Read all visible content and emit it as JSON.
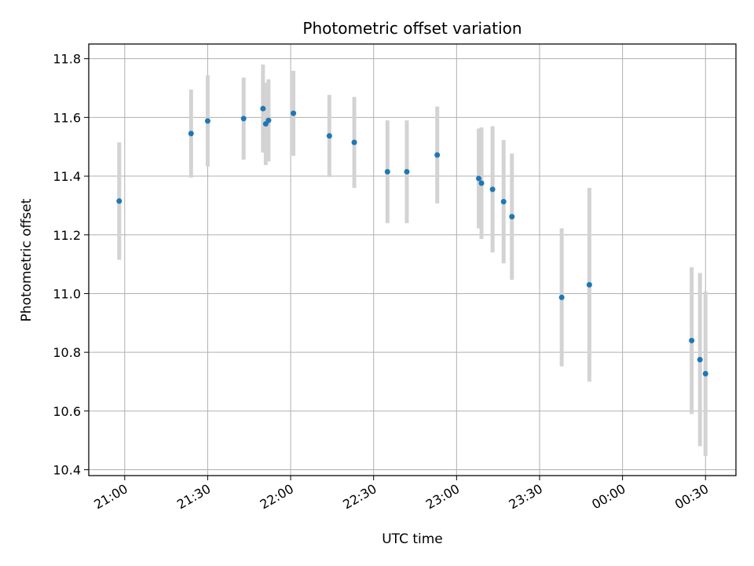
{
  "chart_data": {
    "type": "scatter",
    "title": "Photometric offset variation",
    "xlabel": "UTC time",
    "ylabel": "Photometric offset",
    "x_ticks": [
      "21:00",
      "21:30",
      "22:00",
      "22:30",
      "23:00",
      "23:30",
      "00:00",
      "00:30"
    ],
    "y_ticks": [
      "10.4",
      "10.6",
      "10.8",
      "11.0",
      "11.2",
      "11.4",
      "11.6",
      "11.8"
    ],
    "ylim": [
      10.38,
      11.85
    ],
    "xlim": [
      "20:47",
      "00:41"
    ],
    "grid": true,
    "colors": {
      "point": "#1f77b4",
      "errorbar": "#d3d3d3",
      "grid": "#b0b0b0"
    },
    "series": [
      {
        "points": [
          {
            "x": "20:58",
            "y": 11.315,
            "yerr": 0.2
          },
          {
            "x": "21:24",
            "y": 11.545,
            "yerr": 0.15
          },
          {
            "x": "21:30",
            "y": 11.588,
            "yerr": 0.155
          },
          {
            "x": "21:43",
            "y": 11.596,
            "yerr": 0.14
          },
          {
            "x": "21:50",
            "y": 11.63,
            "yerr": 0.15
          },
          {
            "x": "21:51",
            "y": 11.578,
            "yerr": 0.14
          },
          {
            "x": "21:52",
            "y": 11.59,
            "yerr": 0.14
          },
          {
            "x": "22:01",
            "y": 11.614,
            "yerr": 0.145
          },
          {
            "x": "22:14",
            "y": 11.537,
            "yerr": 0.14
          },
          {
            "x": "22:23",
            "y": 11.515,
            "yerr": 0.155
          },
          {
            "x": "22:35",
            "y": 11.415,
            "yerr": 0.175
          },
          {
            "x": "22:42",
            "y": 11.415,
            "yerr": 0.175
          },
          {
            "x": "22:53",
            "y": 11.472,
            "yerr": 0.165
          },
          {
            "x": "23:08",
            "y": 11.392,
            "yerr": 0.17
          },
          {
            "x": "23:09",
            "y": 11.376,
            "yerr": 0.19
          },
          {
            "x": "23:13",
            "y": 11.355,
            "yerr": 0.215
          },
          {
            "x": "23:17",
            "y": 11.313,
            "yerr": 0.21
          },
          {
            "x": "23:20",
            "y": 11.262,
            "yerr": 0.215
          },
          {
            "x": "23:38",
            "y": 10.987,
            "yerr": 0.235
          },
          {
            "x": "23:48",
            "y": 11.03,
            "yerr": 0.33
          },
          {
            "x": "00:25",
            "y": 10.84,
            "yerr": 0.25
          },
          {
            "x": "00:28",
            "y": 10.775,
            "yerr": 0.295
          },
          {
            "x": "00:30",
            "y": 10.727,
            "yerr": 0.28
          }
        ]
      }
    ]
  }
}
